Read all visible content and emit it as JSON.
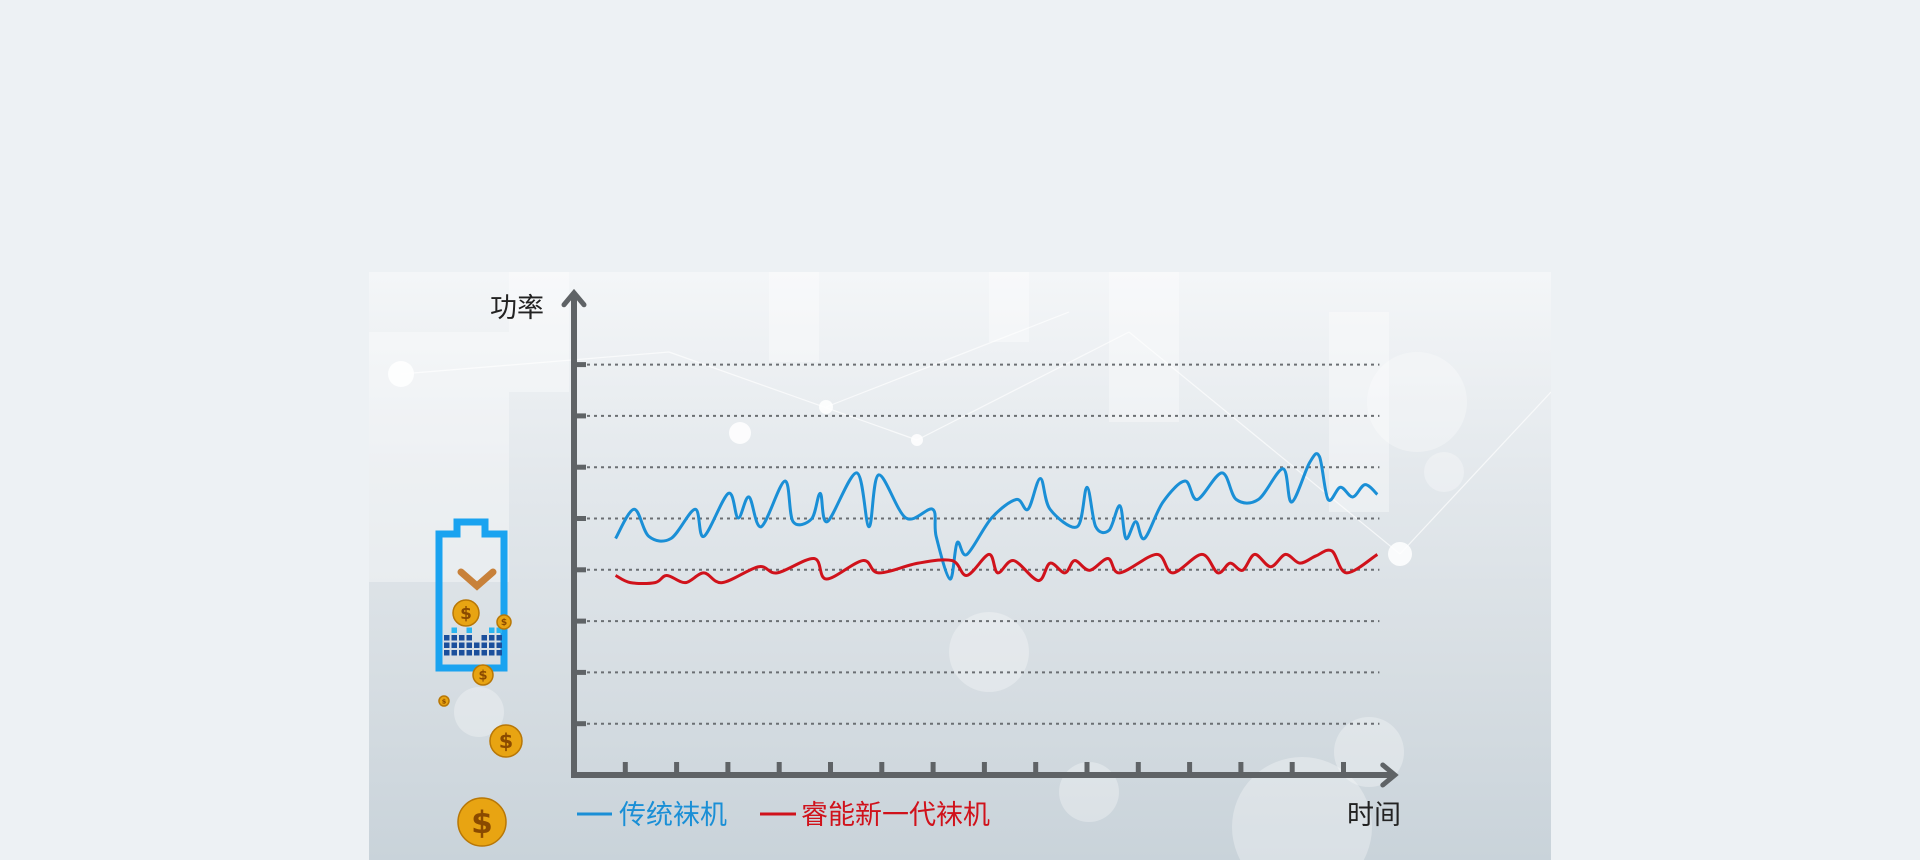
{
  "chart_data": {
    "type": "line",
    "title": "",
    "ylabel": "功率",
    "xlabel": "时间",
    "xlim": [
      0,
      16
    ],
    "ylim": [
      0,
      9.4
    ],
    "grid": true,
    "grid_style": "dotted horizontal",
    "gridlines_y": [
      1,
      2,
      3,
      4,
      5,
      6,
      7,
      8
    ],
    "x_ticks": [
      1,
      2,
      3,
      4,
      5,
      6,
      7,
      8,
      9,
      10,
      11,
      12,
      13,
      14,
      15
    ],
    "legend_position": "bottom-left",
    "series": [
      {
        "name": "传统袜机",
        "color": "#1a8fd6",
        "points": [
          [
            0.81,
            4.61
          ],
          [
            1.17,
            5.18
          ],
          [
            1.46,
            4.65
          ],
          [
            1.89,
            4.61
          ],
          [
            2.36,
            5.18
          ],
          [
            2.53,
            4.65
          ],
          [
            3.01,
            5.49
          ],
          [
            3.2,
            5.01
          ],
          [
            3.41,
            5.42
          ],
          [
            3.65,
            4.84
          ],
          [
            4.11,
            5.73
          ],
          [
            4.27,
            4.94
          ],
          [
            4.63,
            4.99
          ],
          [
            4.8,
            5.49
          ],
          [
            4.94,
            4.94
          ],
          [
            5.51,
            5.89
          ],
          [
            5.75,
            4.84
          ],
          [
            5.94,
            5.85
          ],
          [
            6.47,
            5.01
          ],
          [
            6.99,
            5.18
          ],
          [
            7.06,
            4.65
          ],
          [
            7.33,
            3.82
          ],
          [
            7.47,
            4.53
          ],
          [
            7.66,
            4.3
          ],
          [
            8.14,
            5.01
          ],
          [
            8.62,
            5.37
          ],
          [
            8.85,
            5.18
          ],
          [
            9.09,
            5.78
          ],
          [
            9.28,
            5.18
          ],
          [
            9.81,
            4.84
          ],
          [
            10.0,
            5.61
          ],
          [
            10.17,
            4.84
          ],
          [
            10.43,
            4.77
          ],
          [
            10.64,
            5.25
          ],
          [
            10.76,
            4.61
          ],
          [
            10.95,
            4.94
          ],
          [
            11.12,
            4.61
          ],
          [
            11.48,
            5.32
          ],
          [
            11.91,
            5.73
          ],
          [
            12.15,
            5.37
          ],
          [
            12.63,
            5.89
          ],
          [
            12.91,
            5.37
          ],
          [
            13.34,
            5.37
          ],
          [
            13.82,
            5.97
          ],
          [
            13.99,
            5.32
          ],
          [
            14.34,
            6.09
          ],
          [
            14.53,
            6.21
          ],
          [
            14.7,
            5.37
          ],
          [
            14.94,
            5.61
          ],
          [
            15.18,
            5.42
          ],
          [
            15.42,
            5.66
          ],
          [
            15.66,
            5.47
          ]
        ]
      },
      {
        "name": "睿能新一代袜机",
        "color": "#d0121b",
        "points": [
          [
            0.81,
            3.89
          ],
          [
            1.1,
            3.75
          ],
          [
            1.58,
            3.75
          ],
          [
            1.81,
            3.89
          ],
          [
            2.17,
            3.75
          ],
          [
            2.53,
            3.94
          ],
          [
            2.89,
            3.75
          ],
          [
            3.6,
            4.06
          ],
          [
            3.96,
            3.94
          ],
          [
            4.68,
            4.22
          ],
          [
            4.92,
            3.82
          ],
          [
            5.63,
            4.18
          ],
          [
            5.94,
            3.94
          ],
          [
            6.71,
            4.13
          ],
          [
            7.37,
            4.18
          ],
          [
            7.66,
            3.89
          ],
          [
            8.09,
            4.3
          ],
          [
            8.26,
            3.94
          ],
          [
            8.57,
            4.18
          ],
          [
            9.05,
            3.79
          ],
          [
            9.28,
            4.13
          ],
          [
            9.57,
            3.94
          ],
          [
            9.76,
            4.18
          ],
          [
            10.05,
            3.99
          ],
          [
            10.41,
            4.22
          ],
          [
            10.64,
            3.94
          ],
          [
            11.36,
            4.3
          ],
          [
            11.67,
            3.94
          ],
          [
            12.24,
            4.3
          ],
          [
            12.55,
            3.94
          ],
          [
            12.79,
            4.13
          ],
          [
            13.03,
            3.99
          ],
          [
            13.27,
            4.3
          ],
          [
            13.58,
            4.06
          ],
          [
            13.87,
            4.3
          ],
          [
            14.15,
            4.13
          ],
          [
            14.46,
            4.27
          ],
          [
            14.77,
            4.37
          ],
          [
            15.06,
            3.94
          ],
          [
            15.66,
            4.3
          ]
        ]
      }
    ]
  },
  "colors": {
    "axis": "#5f6366",
    "grid": "#6b6f73",
    "battery": "#1aa3f0",
    "coin": "#e8a412"
  },
  "icons": {
    "battery": "battery-with-checkmark-icon",
    "coin": "dollar-coin-icon"
  }
}
